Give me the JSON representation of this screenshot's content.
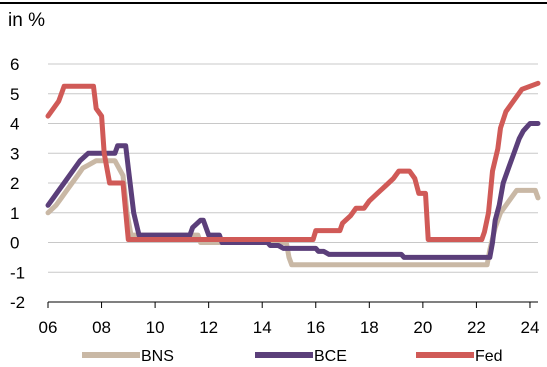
{
  "chart_data": {
    "type": "line",
    "title": "",
    "unit_label": "in %",
    "xlabel": "",
    "ylabel": "",
    "xlim": [
      2006,
      2024.3
    ],
    "ylim": [
      -2,
      6
    ],
    "x_ticks": [
      2006,
      2008,
      2010,
      2012,
      2014,
      2016,
      2018,
      2020,
      2022,
      2024
    ],
    "x_tick_labels": [
      "06",
      "08",
      "10",
      "12",
      "14",
      "16",
      "18",
      "20",
      "22",
      "24"
    ],
    "y_ticks": [
      -2,
      -1,
      0,
      1,
      2,
      3,
      4,
      5,
      6
    ],
    "y_tick_labels": [
      "-2",
      "-1",
      "0",
      "1",
      "2",
      "3",
      "4",
      "5",
      "6"
    ],
    "grid": "horizontal",
    "legend_position": "bottom",
    "series": [
      {
        "name": "BNS",
        "color": "#c9b8a5",
        "x": [
          2006.0,
          2006.3,
          2006.5,
          2006.7,
          2006.9,
          2007.1,
          2007.3,
          2007.5,
          2007.8,
          2008.0,
          2008.5,
          2008.8,
          2008.95,
          2009.1,
          2011.6,
          2011.7,
          2014.9,
          2015.0,
          2015.1,
          2022.4,
          2022.5,
          2022.7,
          2022.9,
          2023.1,
          2023.3,
          2023.5,
          2023.7,
          2024.0,
          2024.2,
          2024.3
        ],
        "y": [
          1.0,
          1.25,
          1.5,
          1.75,
          2.0,
          2.25,
          2.5,
          2.6,
          2.75,
          2.75,
          2.75,
          2.25,
          1.0,
          0.25,
          0.25,
          0.0,
          0.0,
          -0.5,
          -0.75,
          -0.75,
          -0.25,
          0.5,
          1.0,
          1.25,
          1.5,
          1.75,
          1.75,
          1.75,
          1.75,
          1.5
        ]
      },
      {
        "name": "BCE",
        "color": "#5b3f7a",
        "x": [
          2006.0,
          2006.2,
          2006.4,
          2006.6,
          2006.8,
          2007.0,
          2007.2,
          2007.5,
          2008.5,
          2008.6,
          2008.9,
          2009.0,
          2009.2,
          2009.4,
          2011.3,
          2011.4,
          2011.7,
          2011.8,
          2012.0,
          2012.4,
          2012.5,
          2014.2,
          2014.3,
          2014.6,
          2014.8,
          2016.0,
          2016.1,
          2016.3,
          2016.5,
          2019.2,
          2019.3,
          2022.5,
          2022.6,
          2022.7,
          2022.85,
          2023.0,
          2023.2,
          2023.4,
          2023.6,
          2023.75,
          2024.0,
          2024.3
        ],
        "y": [
          1.25,
          1.5,
          1.75,
          2.0,
          2.25,
          2.5,
          2.75,
          3.0,
          3.0,
          3.25,
          3.25,
          2.5,
          1.0,
          0.25,
          0.25,
          0.5,
          0.75,
          0.75,
          0.25,
          0.25,
          0.0,
          0.0,
          -0.1,
          -0.1,
          -0.2,
          -0.2,
          -0.3,
          -0.3,
          -0.4,
          -0.4,
          -0.5,
          -0.5,
          0.0,
          0.75,
          1.25,
          2.0,
          2.5,
          3.0,
          3.5,
          3.75,
          4.0,
          4.0
        ]
      },
      {
        "name": "Fed",
        "color": "#d05a57",
        "x": [
          2006.0,
          2006.2,
          2006.4,
          2006.5,
          2006.6,
          2007.7,
          2007.8,
          2008.0,
          2008.1,
          2008.3,
          2008.8,
          2009.0,
          2015.9,
          2016.0,
          2016.9,
          2017.0,
          2017.3,
          2017.5,
          2017.8,
          2018.0,
          2018.3,
          2018.6,
          2018.9,
          2019.1,
          2019.5,
          2019.7,
          2019.85,
          2020.1,
          2020.2,
          2022.2,
          2022.3,
          2022.45,
          2022.6,
          2022.8,
          2022.9,
          2023.1,
          2023.3,
          2023.5,
          2023.7,
          2024.3
        ],
        "y": [
          4.25,
          4.5,
          4.75,
          5.0,
          5.25,
          5.25,
          4.5,
          4.25,
          3.0,
          2.0,
          2.0,
          0.1,
          0.1,
          0.4,
          0.4,
          0.65,
          0.9,
          1.15,
          1.15,
          1.4,
          1.65,
          1.9,
          2.15,
          2.4,
          2.4,
          2.15,
          1.65,
          1.65,
          0.1,
          0.1,
          0.35,
          1.0,
          2.4,
          3.15,
          3.85,
          4.4,
          4.65,
          4.9,
          5.15,
          5.35
        ]
      }
    ]
  }
}
